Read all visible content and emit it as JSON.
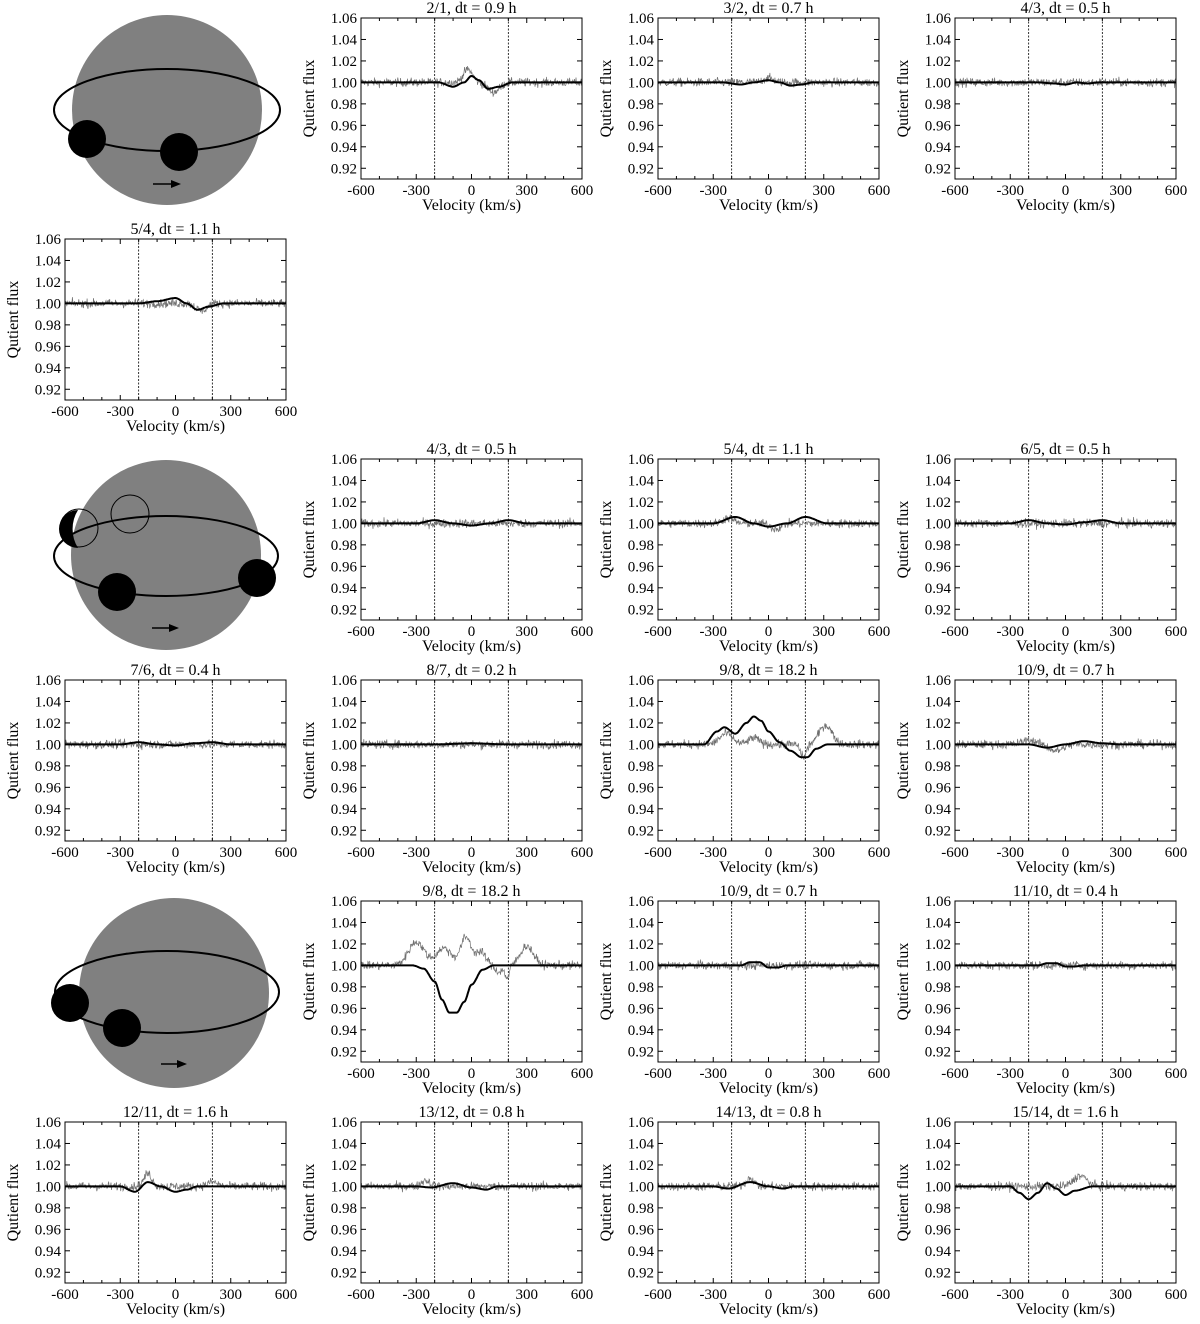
{
  "figure": {
    "colors": {
      "observed": "#6f6f6f",
      "model": "#000000",
      "star": "#808080",
      "spot": "#000000",
      "frame": "#000000"
    },
    "axis_defaults": {
      "xlabel": "Velocity (km/s)",
      "ylabel": "Qutient flux",
      "xlim": [
        -600,
        600
      ],
      "ylim": [
        0.91,
        1.06
      ],
      "xticks": [
        -600,
        -300,
        0,
        300,
        600
      ],
      "yticks": [
        0.92,
        0.94,
        0.96,
        0.98,
        1.0,
        1.02,
        1.04,
        1.06
      ],
      "ytick_labels": [
        "0.92",
        "0.94",
        "0.96",
        "0.98",
        "1.00",
        "1.02",
        "1.04",
        "1.06"
      ],
      "vlines": [
        -200,
        200
      ],
      "grid": false,
      "legend": "none"
    },
    "schematics": [
      {
        "panel": "group-1",
        "star": "grey-disk",
        "orbit": "ellipse",
        "spots_visible": 2,
        "spots_hidden": 0,
        "arrow": "right-arrow"
      },
      {
        "panel": "group-2",
        "star": "grey-disk",
        "orbit": "ellipse",
        "spots_visible": 3,
        "spots_hidden": 2,
        "arrow": "right-arrow"
      },
      {
        "panel": "group-3",
        "star": "grey-disk",
        "orbit": "ellipse",
        "spots_visible": 2,
        "spots_hidden": 0,
        "arrow": "right-arrow"
      }
    ]
  },
  "chart_data": [
    {
      "type": "line",
      "title": "2/1, dt = 0.9 h",
      "model": {
        "x": [
          -600,
          -250,
          -180,
          -100,
          -40,
          0,
          40,
          90,
          150,
          220,
          300,
          600
        ],
        "y": [
          1.0,
          1.0,
          1.0,
          0.996,
          1.0,
          1.006,
          1.002,
          0.994,
          0.996,
          1.0,
          1.0,
          1.0
        ]
      },
      "observed": {
        "noise": 0.004,
        "features": [
          [
            -20,
            1.012,
            35
          ],
          [
            120,
            0.991,
            45
          ]
        ]
      }
    },
    {
      "type": "line",
      "title": "3/2, dt = 0.7 h",
      "model": {
        "x": [
          -600,
          -250,
          -150,
          -80,
          0,
          60,
          120,
          180,
          240,
          600
        ],
        "y": [
          1.0,
          1.0,
          0.998,
          1.0,
          1.002,
          1.0,
          0.997,
          0.998,
          1.0,
          1.0
        ]
      },
      "observed": {
        "noise": 0.004,
        "features": [
          [
            0,
            1.004,
            40
          ]
        ]
      }
    },
    {
      "type": "line",
      "title": "4/3, dt = 0.5 h",
      "model": {
        "x": [
          -600,
          -150,
          -60,
          0,
          60,
          120,
          180,
          600
        ],
        "y": [
          1.0,
          1.0,
          0.999,
          0.998,
          1.0,
          0.999,
          1.0,
          1.0
        ]
      },
      "observed": {
        "noise": 0.004,
        "features": []
      }
    },
    {
      "type": "line",
      "title": "5/4, dt = 1.1 h",
      "model": {
        "x": [
          -600,
          -200,
          -100,
          0,
          60,
          120,
          180,
          260,
          600
        ],
        "y": [
          1.0,
          1.0,
          1.002,
          1.005,
          1.0,
          0.994,
          0.997,
          1.0,
          1.0
        ]
      },
      "observed": {
        "noise": 0.004,
        "features": [
          [
            140,
            0.993,
            40
          ]
        ]
      }
    },
    {
      "type": "line",
      "title": "4/3, dt = 0.5 h",
      "model": {
        "x": [
          -600,
          -300,
          -200,
          -100,
          0,
          100,
          200,
          300,
          600
        ],
        "y": [
          1.0,
          1.0,
          1.003,
          1.0,
          0.998,
          1.0,
          1.003,
          1.0,
          1.0
        ]
      },
      "observed": {
        "noise": 0.004,
        "features": []
      }
    },
    {
      "type": "line",
      "title": "5/4, dt = 1.1 h",
      "model": {
        "x": [
          -600,
          -300,
          -180,
          -80,
          0,
          100,
          200,
          320,
          600
        ],
        "y": [
          1.0,
          1.0,
          1.006,
          1.0,
          0.997,
          1.0,
          1.006,
          1.0,
          1.0
        ]
      },
      "observed": {
        "noise": 0.004,
        "features": [
          [
            -220,
            1.005,
            40
          ],
          [
            40,
            0.995,
            40
          ]
        ]
      }
    },
    {
      "type": "line",
      "title": "6/5, dt = 0.5 h",
      "model": {
        "x": [
          -600,
          -300,
          -200,
          -100,
          0,
          100,
          200,
          300,
          600
        ],
        "y": [
          1.0,
          1.0,
          1.003,
          1.0,
          0.999,
          1.001,
          1.003,
          1.0,
          1.0
        ]
      },
      "observed": {
        "noise": 0.004,
        "features": []
      }
    },
    {
      "type": "line",
      "title": "7/6, dt = 0.4 h",
      "model": {
        "x": [
          -600,
          -300,
          -200,
          -100,
          0,
          100,
          200,
          300,
          600
        ],
        "y": [
          1.0,
          1.0,
          1.002,
          1.0,
          0.999,
          1.001,
          1.002,
          1.0,
          1.0
        ]
      },
      "observed": {
        "noise": 0.004,
        "features": []
      }
    },
    {
      "type": "line",
      "title": "8/7, dt = 0.2 h",
      "model": {
        "x": [
          -600,
          -200,
          0,
          200,
          600
        ],
        "y": [
          1.0,
          1.0,
          1.001,
          1.0,
          1.0
        ]
      },
      "observed": {
        "noise": 0.004,
        "features": []
      }
    },
    {
      "type": "line",
      "title": "9/8, dt = 18.2 h",
      "model": {
        "x": [
          -600,
          -350,
          -280,
          -240,
          -180,
          -120,
          -80,
          -40,
          0,
          60,
          120,
          180,
          210,
          260,
          320,
          600
        ],
        "y": [
          1.0,
          1.0,
          1.012,
          1.016,
          1.01,
          1.02,
          1.026,
          1.022,
          1.012,
          1.002,
          0.994,
          0.988,
          0.988,
          0.996,
          1.0,
          1.0
        ]
      },
      "observed": {
        "noise": 0.004,
        "features": [
          [
            -230,
            1.01,
            50
          ],
          [
            -80,
            1.006,
            40
          ],
          [
            190,
            0.988,
            22
          ],
          [
            310,
            1.018,
            50
          ]
        ]
      }
    },
    {
      "type": "line",
      "title": "10/9, dt = 0.7 h",
      "model": {
        "x": [
          -600,
          -250,
          -200,
          -100,
          0,
          100,
          200,
          300,
          600
        ],
        "y": [
          1.0,
          1.0,
          1.0,
          0.997,
          1.0,
          1.003,
          1.001,
          1.0,
          1.0
        ]
      },
      "observed": {
        "noise": 0.004,
        "features": [
          [
            -200,
            1.004,
            50
          ],
          [
            -50,
            0.994,
            50
          ]
        ]
      }
    },
    {
      "type": "line",
      "title": "9/8, dt = 18.2 h",
      "model": {
        "x": [
          -600,
          -320,
          -260,
          -200,
          -160,
          -120,
          -80,
          -40,
          0,
          60,
          120,
          600
        ],
        "y": [
          1.0,
          1.0,
          0.997,
          0.985,
          0.968,
          0.956,
          0.956,
          0.966,
          0.982,
          0.996,
          1.0,
          1.0
        ]
      },
      "observed": {
        "noise": 0.004,
        "features": [
          [
            -300,
            1.022,
            60
          ],
          [
            -150,
            1.016,
            60
          ],
          [
            -30,
            1.026,
            40
          ],
          [
            50,
            1.012,
            40
          ],
          [
            150,
            0.994,
            30
          ],
          [
            195,
            0.988,
            15
          ],
          [
            300,
            1.018,
            50
          ]
        ]
      }
    },
    {
      "type": "line",
      "title": "10/9, dt = 0.7 h",
      "model": {
        "x": [
          -600,
          -250,
          -150,
          -100,
          -50,
          0,
          50,
          100,
          600
        ],
        "y": [
          1.0,
          1.0,
          1.0,
          1.003,
          1.003,
          0.998,
          0.998,
          1.0,
          1.0
        ]
      },
      "observed": {
        "noise": 0.004,
        "features": []
      }
    },
    {
      "type": "line",
      "title": "11/10, dt = 0.4 h",
      "model": {
        "x": [
          -600,
          -250,
          -150,
          -100,
          -50,
          0,
          50,
          100,
          600
        ],
        "y": [
          1.0,
          1.0,
          1.0,
          1.002,
          1.002,
          0.999,
          0.999,
          1.0,
          1.0
        ]
      },
      "observed": {
        "noise": 0.004,
        "features": []
      }
    },
    {
      "type": "line",
      "title": "12/11, dt = 1.6 h",
      "model": {
        "x": [
          -600,
          -300,
          -220,
          -150,
          -80,
          0,
          60,
          120,
          600
        ],
        "y": [
          1.0,
          1.0,
          0.995,
          1.004,
          1.0,
          0.995,
          0.997,
          1.0,
          1.0
        ]
      },
      "observed": {
        "noise": 0.004,
        "features": [
          [
            -150,
            1.012,
            30
          ],
          [
            200,
            1.004,
            40
          ]
        ]
      }
    },
    {
      "type": "line",
      "title": "13/12, dt = 0.8 h",
      "model": {
        "x": [
          -600,
          -300,
          -220,
          -100,
          0,
          80,
          140,
          600
        ],
        "y": [
          1.0,
          1.0,
          0.999,
          1.003,
          0.999,
          0.997,
          1.0,
          1.0
        ]
      },
      "observed": {
        "noise": 0.004,
        "features": [
          [
            -250,
            1.006,
            30
          ]
        ]
      }
    },
    {
      "type": "line",
      "title": "14/13, dt = 0.8 h",
      "model": {
        "x": [
          -600,
          -300,
          -220,
          -100,
          0,
          80,
          140,
          600
        ],
        "y": [
          1.0,
          1.0,
          0.998,
          1.004,
          1.0,
          0.998,
          1.0,
          1.0
        ]
      },
      "observed": {
        "noise": 0.004,
        "features": [
          [
            -100,
            1.008,
            30
          ]
        ]
      }
    },
    {
      "type": "line",
      "title": "15/14, dt = 1.6 h",
      "model": {
        "x": [
          -600,
          -300,
          -250,
          -200,
          -150,
          -100,
          -50,
          0,
          50,
          150,
          600
        ],
        "y": [
          1.0,
          1.0,
          0.994,
          0.988,
          0.994,
          1.003,
          0.998,
          0.992,
          0.996,
          1.0,
          1.0
        ]
      },
      "observed": {
        "noise": 0.004,
        "features": [
          [
            80,
            1.01,
            50
          ]
        ]
      }
    }
  ]
}
